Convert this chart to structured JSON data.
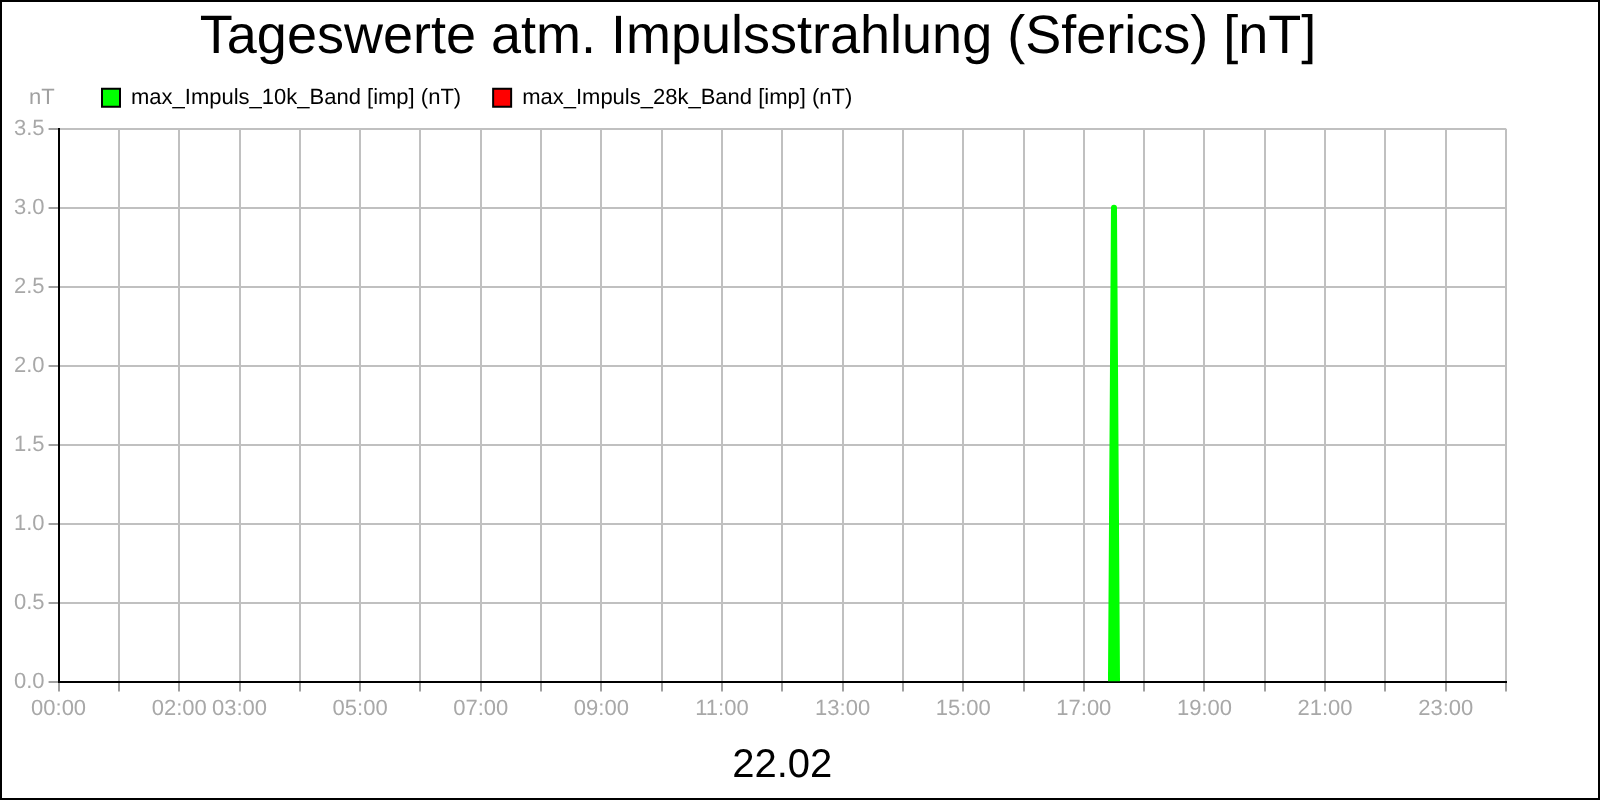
{
  "chart_data": {
    "type": "line",
    "title": "Tageswerte atm. Impulsstrahlung (Sferics) [nT]",
    "xlabel": "22.02",
    "ylabel": "nT",
    "series": [
      {
        "name": "max_Impuls_10k_Band [imp] (nT)",
        "color": "#00ff00",
        "x": [
          17.45,
          17.5,
          17.55
        ],
        "values": [
          0,
          3.0,
          0
        ]
      },
      {
        "name": "max_Impuls_28k_Band [imp] (nT)",
        "color": "#ff0000"
      }
    ],
    "xlim": [
      0,
      24
    ],
    "xticks": [
      {
        "value": 0,
        "label": "00:00"
      },
      {
        "value": 1,
        "label": null
      },
      {
        "value": 2,
        "label": "02:00"
      },
      {
        "value": 3,
        "label": "03:00"
      },
      {
        "value": 4,
        "label": null
      },
      {
        "value": 5,
        "label": "05:00"
      },
      {
        "value": 6,
        "label": null
      },
      {
        "value": 7,
        "label": "07:00"
      },
      {
        "value": 8,
        "label": null
      },
      {
        "value": 9,
        "label": "09:00"
      },
      {
        "value": 10,
        "label": null
      },
      {
        "value": 11,
        "label": "11:00"
      },
      {
        "value": 12,
        "label": null
      },
      {
        "value": 13,
        "label": "13:00"
      },
      {
        "value": 14,
        "label": null
      },
      {
        "value": 15,
        "label": "15:00"
      },
      {
        "value": 16,
        "label": null
      },
      {
        "value": 17,
        "label": "17:00"
      },
      {
        "value": 18,
        "label": null
      },
      {
        "value": 19,
        "label": "19:00"
      },
      {
        "value": 20,
        "label": null
      },
      {
        "value": 21,
        "label": "21:00"
      },
      {
        "value": 22,
        "label": null
      },
      {
        "value": 23,
        "label": "23:00"
      },
      {
        "value": 24,
        "label": null
      }
    ],
    "ylim": [
      0,
      3.5
    ],
    "yticks": [
      {
        "value": 0,
        "label": "0.0"
      },
      {
        "value": 0.5,
        "label": "0.5"
      },
      {
        "value": 1,
        "label": "1.0"
      },
      {
        "value": 1.5,
        "label": "1.5"
      },
      {
        "value": 2,
        "label": "2.0"
      },
      {
        "value": 2.5,
        "label": "2.5"
      },
      {
        "value": 3,
        "label": "3.0"
      },
      {
        "value": 3.5,
        "label": "3.5"
      }
    ],
    "grid": true,
    "legend": "top left",
    "marker": "none",
    "line_style": "solid"
  }
}
